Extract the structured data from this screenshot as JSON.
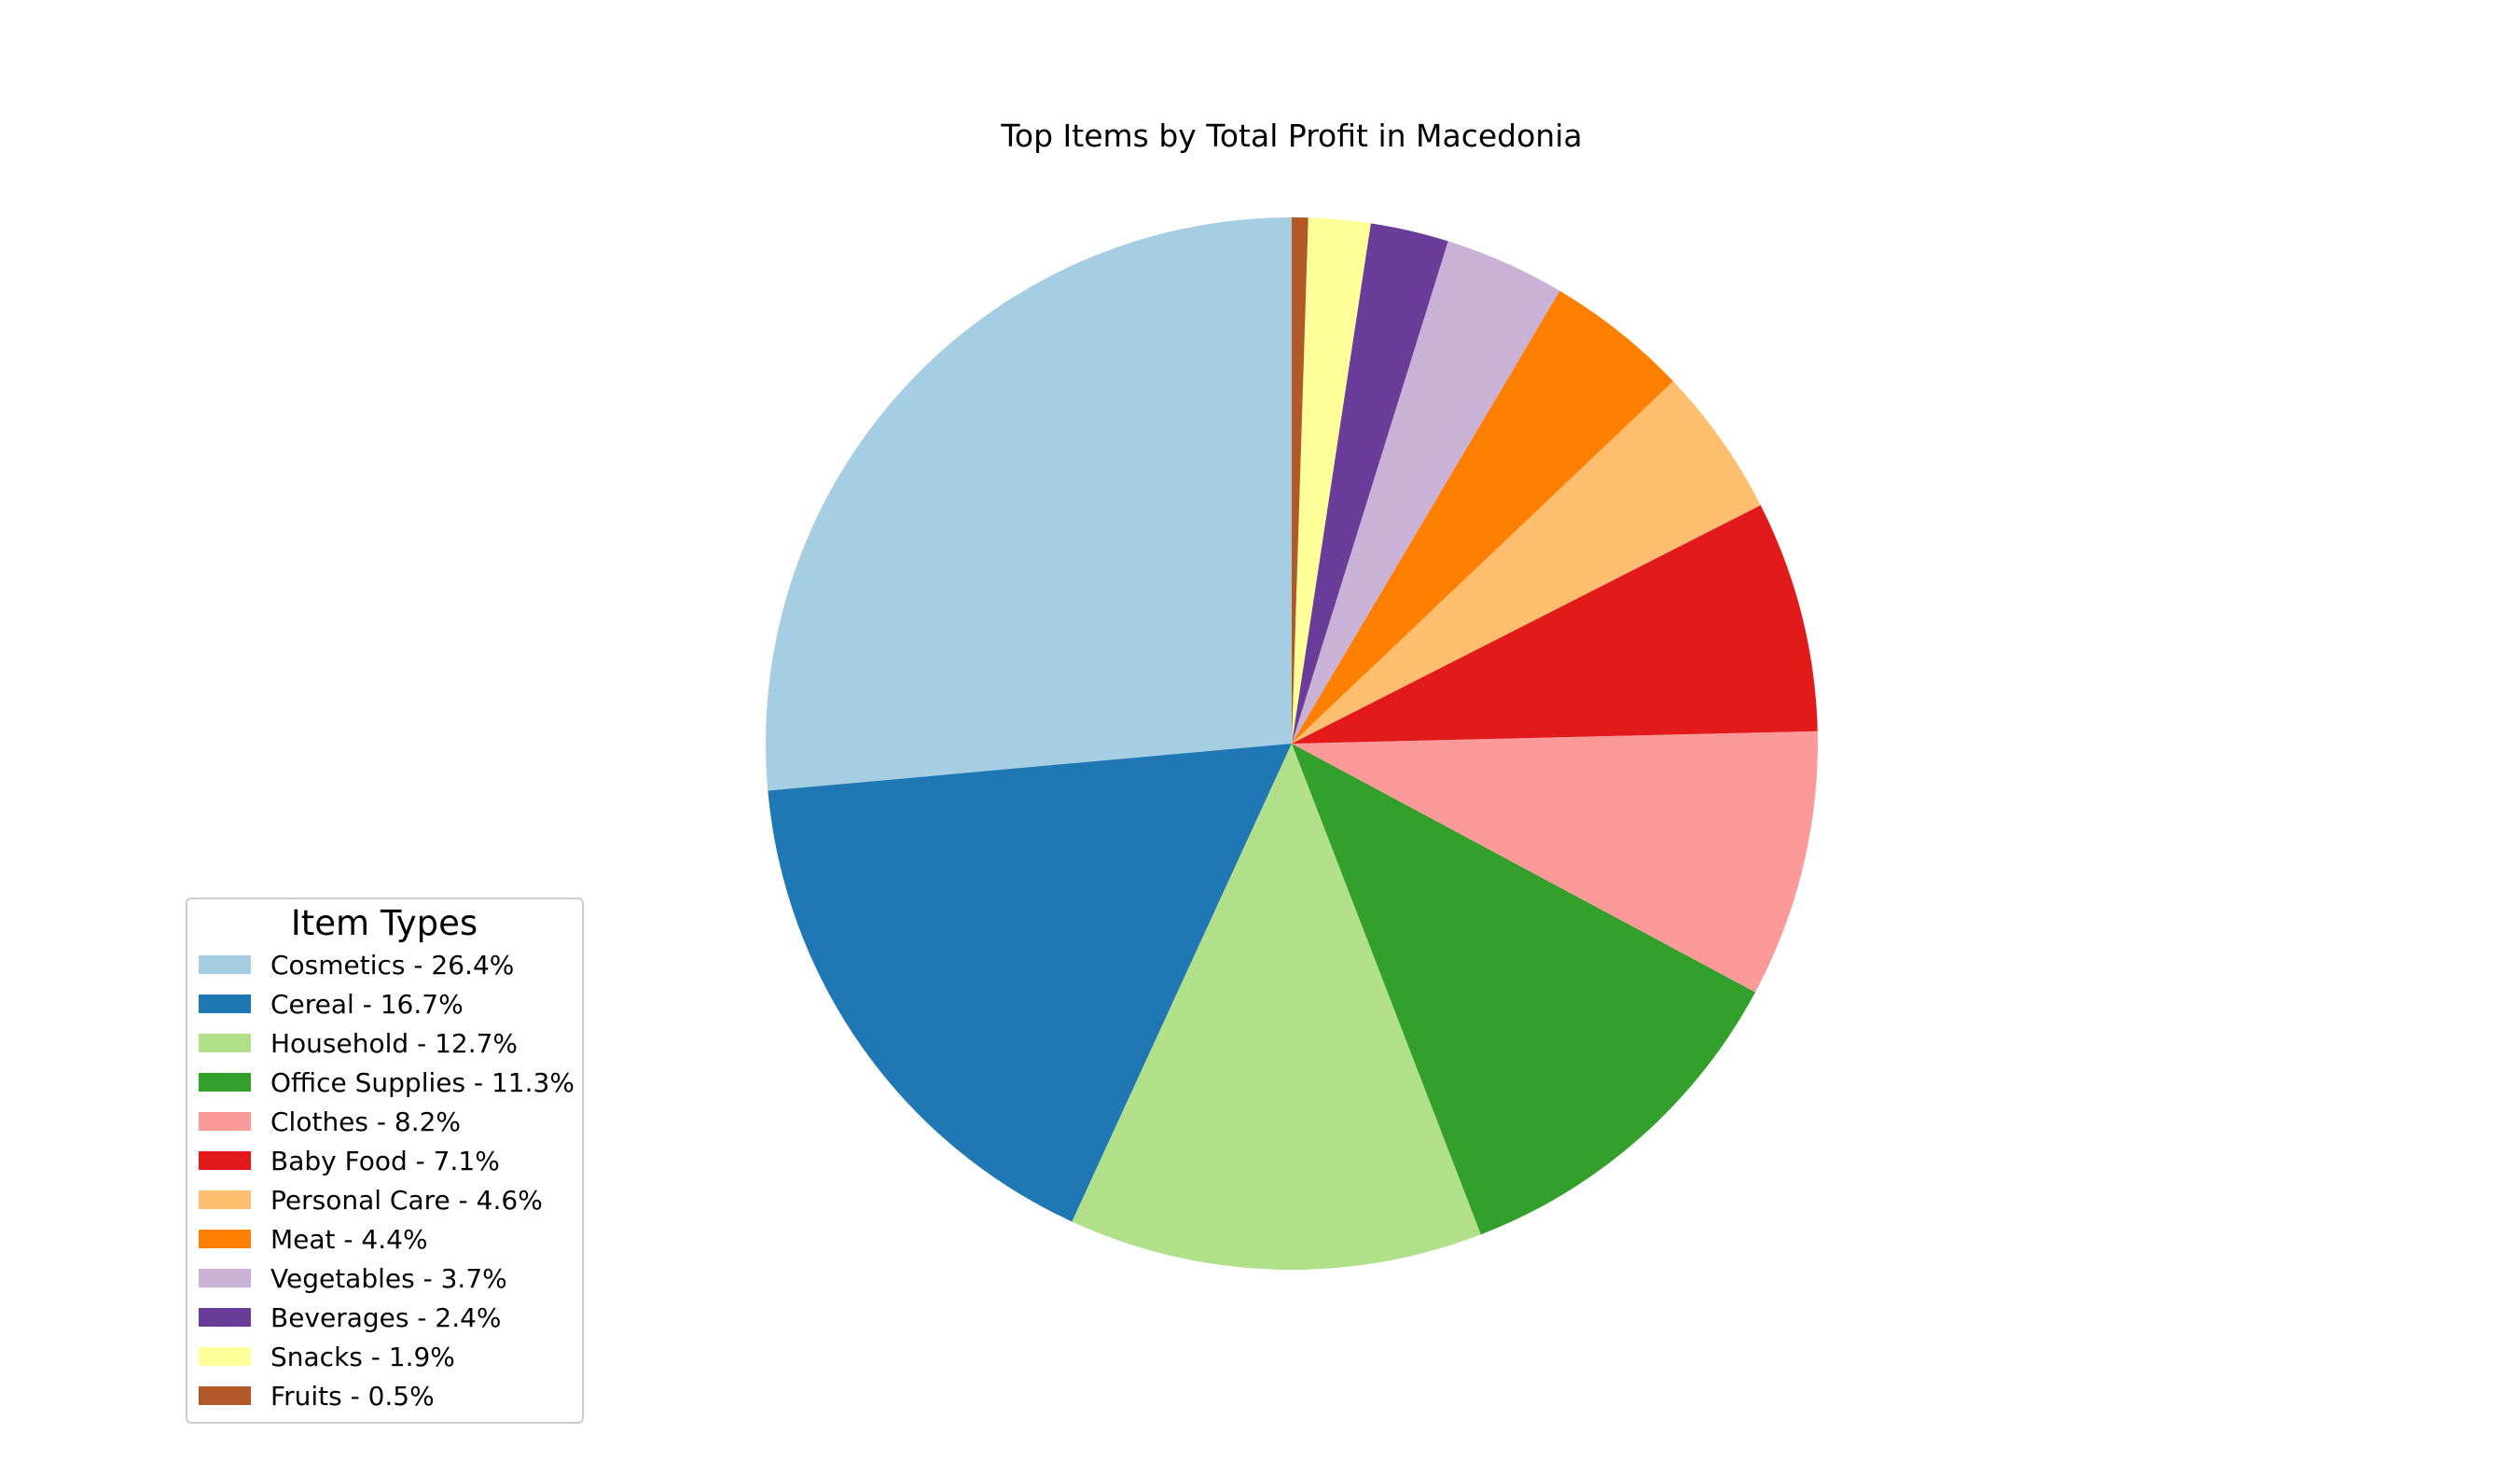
{
  "chart_data": {
    "type": "pie",
    "title": "Top Items by Total Profit in Macedonia",
    "start_angle": 90,
    "direction": "counterclockwise",
    "legend": {
      "title": "Item Types",
      "placement": "lower-left",
      "entries": [
        "Cosmetics - 26.4%",
        "Cereal - 16.7%",
        "Household - 12.7%",
        "Office Supplies - 11.3%",
        "Clothes - 8.2%",
        "Baby Food - 7.1%",
        "Personal Care - 4.6%",
        "Meat - 4.4%",
        "Vegetables - 3.7%",
        "Beverages - 2.4%",
        "Snacks - 1.9%",
        "Fruits - 0.5%"
      ]
    },
    "categories": [
      "Cosmetics",
      "Cereal",
      "Household",
      "Office Supplies",
      "Clothes",
      "Baby Food",
      "Personal Care",
      "Meat",
      "Vegetables",
      "Beverages",
      "Snacks",
      "Fruits"
    ],
    "values": [
      26.4,
      16.7,
      12.7,
      11.3,
      8.2,
      7.1,
      4.6,
      4.4,
      3.7,
      2.4,
      1.9,
      0.5
    ],
    "colors": [
      "#a6cee3",
      "#1f78b4",
      "#b2df8a",
      "#33a02c",
      "#fb9a99",
      "#e31a1c",
      "#fdbf6f",
      "#ff7f00",
      "#cab2d6",
      "#6a3d9a",
      "#ffff99",
      "#b15928"
    ]
  }
}
